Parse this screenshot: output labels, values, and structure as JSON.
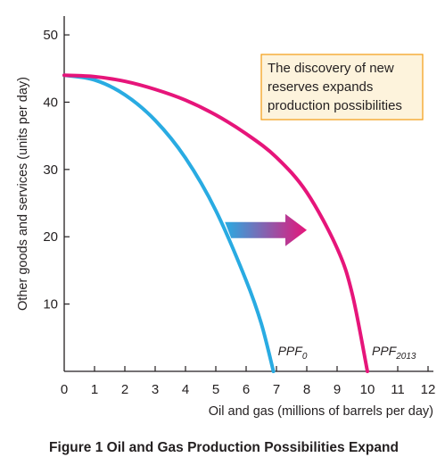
{
  "chart_data": {
    "type": "line",
    "title": "Figure 1 Oil and Gas Production Possibilities Expand",
    "xlabel": "Oil and gas (millions of barrels per day)",
    "ylabel": "Other goods and services (units per day)",
    "xlim": [
      0,
      12
    ],
    "ylim": [
      0,
      52
    ],
    "x_ticks": [
      "0",
      "1",
      "2",
      "3",
      "4",
      "5",
      "6",
      "7",
      "8",
      "9",
      "10",
      "11",
      "12"
    ],
    "y_ticks": [
      "10",
      "20",
      "30",
      "40",
      "50"
    ],
    "grid": false,
    "series": [
      {
        "name": "PPF0",
        "label_main": "PPF",
        "label_sub": "0",
        "color": "#29abe2",
        "x": [
          0,
          1,
          2,
          3,
          4,
          5,
          6,
          6.5,
          6.9
        ],
        "y": [
          44,
          43.3,
          41.1,
          37.3,
          31.7,
          23.9,
          13.5,
          7.1,
          0
        ]
      },
      {
        "name": "PPF2013",
        "label_main": "PPF",
        "label_sub": "2013",
        "color": "#e6157a",
        "x": [
          0,
          1,
          2,
          3,
          4,
          5,
          6,
          7,
          8,
          9,
          9.5,
          10
        ],
        "y": [
          44,
          43.8,
          43.1,
          41.9,
          40.3,
          38.1,
          35.3,
          31.8,
          26.6,
          18.3,
          11.5,
          0
        ]
      }
    ],
    "annotation": {
      "lines": [
        "The discovery of new",
        "reserves expands",
        "production possibilities"
      ],
      "box_fill": "#fdf3dc",
      "box_stroke": "#f39c12"
    },
    "shift_arrow": {
      "from": [
        5.3,
        21
      ],
      "to": [
        8,
        21
      ],
      "color_start": "#29abe2",
      "color_end": "#e6157a"
    }
  }
}
